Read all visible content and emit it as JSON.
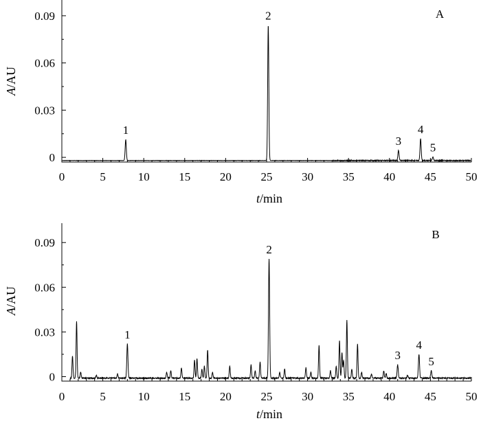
{
  "chart_data": [
    {
      "type": "line",
      "panel_label": "A",
      "xlabel": {
        "italic": "t",
        "rest": "/min"
      },
      "ylabel": {
        "italic": "A",
        "rest": "/AU"
      },
      "xlim": [
        0,
        50
      ],
      "ylim": [
        -0.003,
        0.1
      ],
      "x_ticks": [
        0,
        5,
        10,
        15,
        20,
        25,
        30,
        35,
        40,
        45,
        50
      ],
      "y_ticks": [
        0,
        0.03,
        0.06,
        0.09
      ],
      "y_tick_labels": [
        "0",
        "0.03",
        "0.06",
        "0.09"
      ],
      "baseline": -0.002,
      "peaks": [
        {
          "label": "1",
          "t": 7.8,
          "height": 0.0133
        },
        {
          "label": "2",
          "t": 25.2,
          "height": 0.086
        },
        {
          "label": "3",
          "t": 41.1,
          "height": 0.0065
        },
        {
          "label": "4",
          "t": 43.8,
          "height": 0.0138
        },
        {
          "label": "5",
          "t": 45.3,
          "height": 0.0022
        }
      ],
      "minor_peaks": []
    },
    {
      "type": "line",
      "panel_label": "B",
      "xlabel": {
        "italic": "t",
        "rest": "/min"
      },
      "ylabel": {
        "italic": "A",
        "rest": "/AU"
      },
      "xlim": [
        0,
        50
      ],
      "ylim": [
        -0.003,
        0.103
      ],
      "x_ticks": [
        0,
        5,
        10,
        15,
        20,
        25,
        30,
        35,
        40,
        45,
        50
      ],
      "y_ticks": [
        0,
        0.03,
        0.06,
        0.09
      ],
      "y_tick_labels": [
        "0",
        "0.03",
        "0.06",
        "0.09"
      ],
      "baseline": -0.001,
      "peaks": [
        {
          "label": "1",
          "t": 8.0,
          "height": 0.023
        },
        {
          "label": "2",
          "t": 25.3,
          "height": 0.08
        },
        {
          "label": "3",
          "t": 41.0,
          "height": 0.009
        },
        {
          "label": "4",
          "t": 43.6,
          "height": 0.016
        },
        {
          "label": "5",
          "t": 45.1,
          "height": 0.005
        }
      ],
      "minor_peaks": [
        {
          "t": 1.3,
          "height": 0.015
        },
        {
          "t": 1.8,
          "height": 0.038
        },
        {
          "t": 2.3,
          "height": 0.004
        },
        {
          "t": 4.2,
          "height": 0.002
        },
        {
          "t": 6.8,
          "height": 0.003
        },
        {
          "t": 12.8,
          "height": 0.004
        },
        {
          "t": 13.3,
          "height": 0.005
        },
        {
          "t": 14.6,
          "height": 0.007
        },
        {
          "t": 16.2,
          "height": 0.012
        },
        {
          "t": 16.5,
          "height": 0.013
        },
        {
          "t": 17.1,
          "height": 0.006
        },
        {
          "t": 17.4,
          "height": 0.008
        },
        {
          "t": 17.8,
          "height": 0.019
        },
        {
          "t": 18.4,
          "height": 0.004
        },
        {
          "t": 20.5,
          "height": 0.008
        },
        {
          "t": 23.1,
          "height": 0.009
        },
        {
          "t": 23.6,
          "height": 0.005
        },
        {
          "t": 24.2,
          "height": 0.011
        },
        {
          "t": 26.6,
          "height": 0.004
        },
        {
          "t": 27.2,
          "height": 0.006
        },
        {
          "t": 29.8,
          "height": 0.007
        },
        {
          "t": 30.4,
          "height": 0.004
        },
        {
          "t": 31.4,
          "height": 0.022
        },
        {
          "t": 32.8,
          "height": 0.005
        },
        {
          "t": 33.5,
          "height": 0.008
        },
        {
          "t": 33.9,
          "height": 0.025
        },
        {
          "t": 34.2,
          "height": 0.017
        },
        {
          "t": 34.4,
          "height": 0.012
        },
        {
          "t": 34.8,
          "height": 0.039
        },
        {
          "t": 35.4,
          "height": 0.006
        },
        {
          "t": 36.1,
          "height": 0.023
        },
        {
          "t": 36.6,
          "height": 0.004
        },
        {
          "t": 37.8,
          "height": 0.003
        },
        {
          "t": 39.3,
          "height": 0.005
        },
        {
          "t": 39.6,
          "height": 0.003
        },
        {
          "t": 42.2,
          "height": 0.002
        }
      ]
    }
  ]
}
